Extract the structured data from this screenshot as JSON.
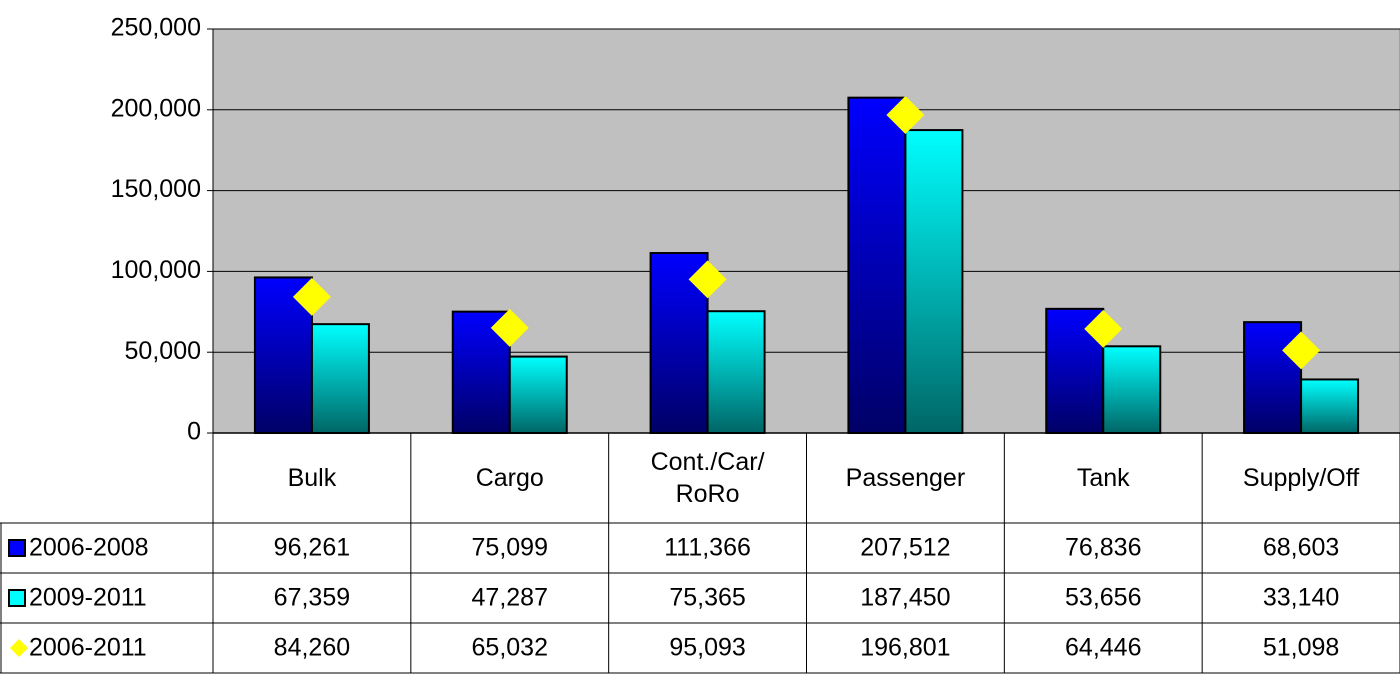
{
  "chart_data": {
    "type": "bar",
    "categories": [
      "Bulk",
      "Cargo",
      "Cont./Car/\nRoRo",
      "Passenger",
      "Tank",
      "Supply/Off"
    ],
    "series": [
      {
        "name": "2006-2008",
        "color": "#0000ff",
        "values": [
          96261,
          75099,
          111366,
          207512,
          76836,
          68603
        ],
        "value_labels": [
          "96,261",
          "75,099",
          "111,366",
          "207,512",
          "76,836",
          "68,603"
        ]
      },
      {
        "name": "2009-2011",
        "color": "#00ffff",
        "values": [
          67359,
          47287,
          75365,
          187450,
          53656,
          33140
        ],
        "value_labels": [
          "67,359",
          "47,287",
          "75,365",
          "187,450",
          "53,656",
          "33,140"
        ]
      },
      {
        "name": "2006-2011",
        "color": "#ffff00",
        "marker": "diamond",
        "values": [
          84260,
          65032,
          95093,
          196801,
          64446,
          51098
        ],
        "value_labels": [
          "84,260",
          "65,032",
          "95,093",
          "196,801",
          "64,446",
          "51,098"
        ]
      }
    ],
    "ylim": [
      0,
      250000
    ],
    "yticks": [
      0,
      {
        "value": 50000,
        "label": "50,000"
      },
      {
        "value": 100000,
        "label": "100,000"
      },
      {
        "value": 150000,
        "label": "150,000"
      },
      {
        "value": 200000,
        "label": "200,000"
      },
      {
        "value": 250000,
        "label": "250,000"
      }
    ],
    "grid": true,
    "plot_background": "#c0c0c0",
    "data_table": true
  }
}
